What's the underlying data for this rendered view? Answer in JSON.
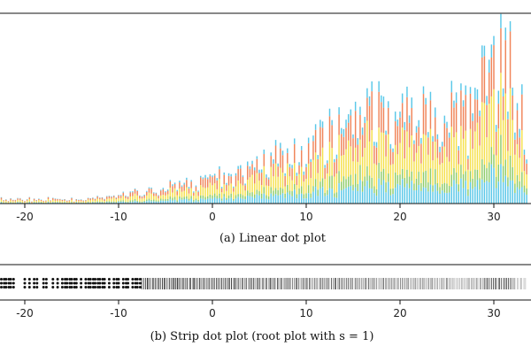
{
  "chart_data": [
    {
      "type": "bar",
      "variant": "stacked-dot-columns",
      "caption": "(a)  Linear dot plot",
      "xlim": [
        -23.5,
        33.5
      ],
      "xticks": [
        -20,
        -10,
        0,
        10,
        20,
        30
      ],
      "xtick_labels": [
        "-20",
        "-10",
        "0",
        "10",
        "20",
        "30"
      ],
      "bin_width": 0.25,
      "grid": false,
      "y_axis_shown": false,
      "layer_colors": [
        "#5bc8e8",
        "#8fcc6a",
        "#f5e04c",
        "#f0855a",
        "#5bc8e8"
      ],
      "stack_fractions": [
        0.18,
        0.12,
        0.34,
        0.28,
        0.08
      ],
      "profile": [
        {
          "x": -23.5,
          "y": 3
        },
        {
          "x": -15,
          "y": 3
        },
        {
          "x": -10,
          "y": 5
        },
        {
          "x": -5,
          "y": 11
        },
        {
          "x": 0,
          "y": 16
        },
        {
          "x": 5,
          "y": 26
        },
        {
          "x": 10,
          "y": 41
        },
        {
          "x": 15,
          "y": 57
        },
        {
          "x": 20,
          "y": 66
        },
        {
          "x": 25,
          "y": 58
        },
        {
          "x": 28,
          "y": 66
        },
        {
          "x": 30,
          "y": 98
        },
        {
          "x": 31,
          "y": 118
        },
        {
          "x": 32,
          "y": 92
        },
        {
          "x": 33.5,
          "y": 46
        }
      ]
    },
    {
      "type": "scatter",
      "variant": "strip-dot-plot",
      "caption": "(b)  Strip dot plot (root plot with s = 1)",
      "xlim": [
        -23.5,
        33.5
      ],
      "xticks": [
        -20,
        -10,
        0,
        10,
        20,
        30
      ],
      "xtick_labels": [
        "-20",
        "-10",
        "0",
        "10",
        "20",
        "30"
      ],
      "dot_color": "#111111",
      "dot_region": [
        -23.5,
        -7.5
      ],
      "line_region": [
        -7.5,
        33.5
      ],
      "grid": false
    }
  ]
}
